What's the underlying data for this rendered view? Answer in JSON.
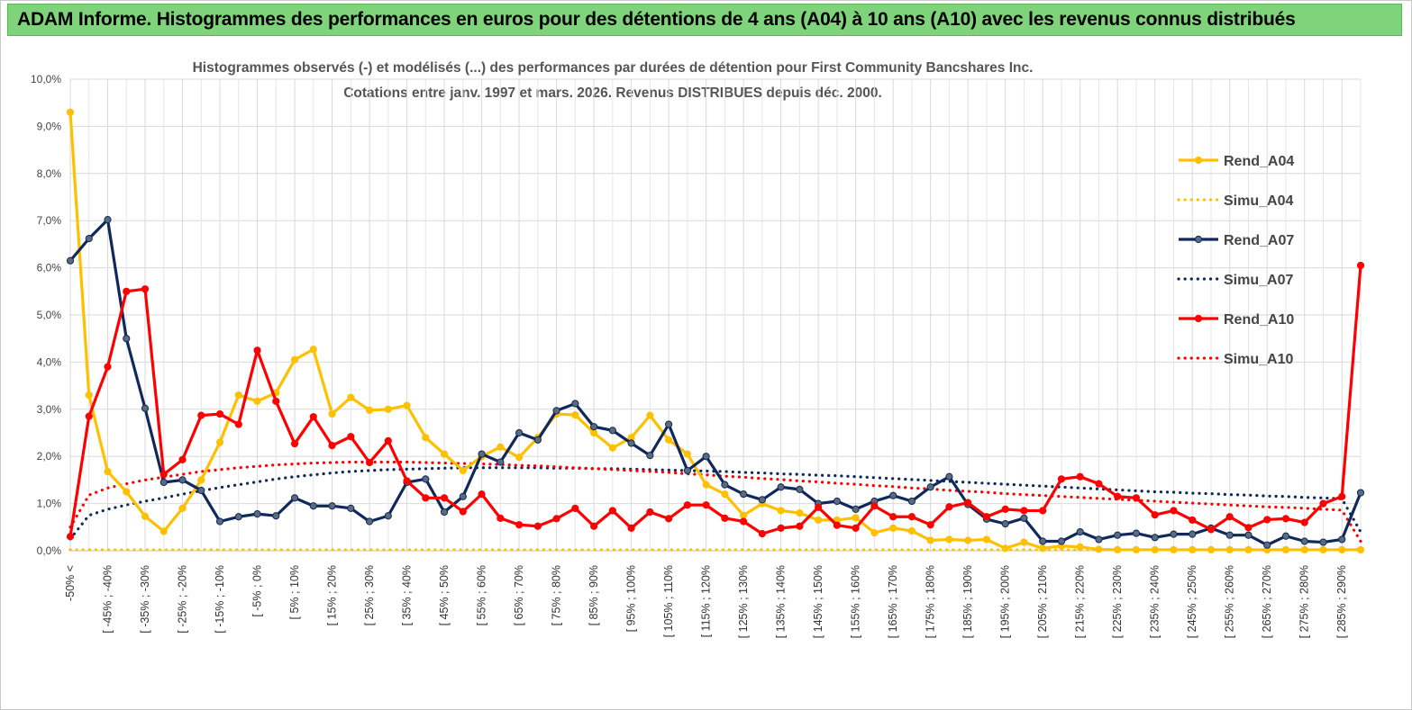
{
  "banner_title": "ADAM Informe. Histogrammes des performances en euros pour des détentions de 4 ans (A04) à 10 ans (A10) avec les revenus connus distribués",
  "chart_data": {
    "type": "line",
    "title_line1": "Histogrammes observés (-) et modélisés (...) des performances par durées de détention pour First Community Bancshares Inc.",
    "title_line2": "Cotations entre janv. 1997 et mars. 2026. Revenus DISTRIBUES depuis déc. 2000.",
    "ylim": [
      0,
      10
    ],
    "yticks": [
      "0,0%",
      "1,0%",
      "2,0%",
      "3,0%",
      "4,0%",
      "5,0%",
      "6,0%",
      "7,0%",
      "8,0%",
      "9,0%",
      "10,0%"
    ],
    "xtick_labels": [
      "-50% <",
      "[ -45% ; -40%",
      "[ -35% ; -30%",
      "[ -25% ; -20%",
      "[ -15% ; -10%",
      "[ -5% ; 0%",
      "[ 5% ; 10%",
      "[ 15% ; 20%",
      "[ 25% ; 30%",
      "[ 35% ; 40%",
      "[ 45% ; 50%",
      "[ 55% ; 60%",
      "[ 65% ; 70%",
      "[ 75% ; 80%",
      "[ 85% ; 90%",
      "[ 95% ; 100%",
      "[ 105% ; 110%",
      "[ 115% ; 120%",
      "[ 125% ; 130%",
      "[ 135% ; 140%",
      "[ 145% ; 150%",
      "[ 155% ; 160%",
      "[ 165% ; 170%",
      "[ 175% ; 180%",
      "[ 185% ; 190%",
      "[ 195% ; 200%",
      "[ 205% ; 210%",
      "[ 215% ; 220%",
      "[ 225% ; 230%",
      "[ 235% ; 240%",
      "[ 245% ; 250%",
      "[ 255% ; 260%",
      "[ 265% ; 270%",
      "[ 275% ; 280%",
      "[ 285% ; 290%"
    ],
    "series": [
      {
        "name": "Rend_A04",
        "color": "#ffc000",
        "style": "solid",
        "markers": true,
        "values": [
          9.3,
          3.3,
          1.68,
          1.25,
          0.73,
          0.41,
          0.9,
          1.5,
          2.3,
          3.3,
          3.17,
          3.35,
          4.05,
          4.27,
          2.9,
          3.25,
          2.98,
          3.0,
          3.08,
          2.4,
          2.05,
          1.7,
          2.0,
          2.2,
          1.98,
          2.4,
          2.9,
          2.88,
          2.5,
          2.18,
          2.4,
          2.87,
          2.35,
          2.05,
          1.4,
          1.2,
          0.75,
          1.0,
          0.85,
          0.8,
          0.65,
          0.65,
          0.7,
          0.38,
          0.48,
          0.42,
          0.22,
          0.24,
          0.22,
          0.24,
          0.05,
          0.18,
          0.05,
          0.1,
          0.08,
          0.03,
          0.02,
          0.02,
          0.02,
          0.02,
          0.02,
          0.02,
          0.02,
          0.02,
          0.02,
          0.02,
          0.02,
          0.02,
          0.02,
          0.02
        ]
      },
      {
        "name": "Simu_A04",
        "color": "#ffc000",
        "style": "dotted",
        "markers": false,
        "values": [
          0.02,
          0.02,
          0.02,
          0.02,
          0.02,
          0.02,
          0.02,
          0.02,
          0.02,
          0.02,
          0.02,
          0.02,
          0.02,
          0.02,
          0.02,
          0.02,
          0.02,
          0.02,
          0.02,
          0.02,
          0.02,
          0.02,
          0.02,
          0.02,
          0.02,
          0.02,
          0.02,
          0.02,
          0.02,
          0.02,
          0.02,
          0.02,
          0.02,
          0.02,
          0.02,
          0.02,
          0.02,
          0.02,
          0.02,
          0.02,
          0.02,
          0.02,
          0.02,
          0.02,
          0.02,
          0.02,
          0.02,
          0.02,
          0.02,
          0.02,
          0.02,
          0.02,
          0.02,
          0.02,
          0.02,
          0.02,
          0.02,
          0.02,
          0.02,
          0.02,
          0.02,
          0.02,
          0.02,
          0.02,
          0.02,
          0.02,
          0.02,
          0.02,
          0.02,
          0.02
        ]
      },
      {
        "name": "Rend_A07",
        "color": "#10285c",
        "style": "solid",
        "markers": true,
        "values": [
          6.15,
          6.62,
          7.02,
          4.5,
          3.02,
          1.45,
          1.5,
          1.28,
          0.62,
          0.72,
          0.78,
          0.74,
          1.12,
          0.95,
          0.95,
          0.9,
          0.62,
          0.74,
          1.45,
          1.52,
          0.82,
          1.15,
          2.05,
          1.88,
          2.5,
          2.35,
          2.97,
          3.12,
          2.63,
          2.55,
          2.28,
          2.02,
          2.68,
          1.7,
          2.0,
          1.4,
          1.2,
          1.08,
          1.35,
          1.3,
          1.0,
          1.05,
          0.88,
          1.05,
          1.17,
          1.05,
          1.35,
          1.57,
          0.98,
          0.67,
          0.57,
          0.69,
          0.2,
          0.2,
          0.4,
          0.24,
          0.33,
          0.37,
          0.28,
          0.35,
          0.35,
          0.48,
          0.33,
          0.33,
          0.12,
          0.31,
          0.2,
          0.18,
          0.24,
          1.23
        ]
      },
      {
        "name": "Simu_A07",
        "color": "#10285c",
        "style": "dotted",
        "markers": false,
        "values": [
          0.25,
          0.75,
          0.88,
          0.97,
          1.05,
          1.12,
          1.2,
          1.27,
          1.34,
          1.4,
          1.46,
          1.52,
          1.57,
          1.61,
          1.65,
          1.68,
          1.7,
          1.72,
          1.73,
          1.74,
          1.75,
          1.76,
          1.76,
          1.76,
          1.76,
          1.76,
          1.75,
          1.75,
          1.74,
          1.74,
          1.73,
          1.72,
          1.71,
          1.7,
          1.69,
          1.68,
          1.66,
          1.65,
          1.63,
          1.62,
          1.6,
          1.59,
          1.57,
          1.55,
          1.53,
          1.51,
          1.49,
          1.47,
          1.45,
          1.43,
          1.41,
          1.39,
          1.37,
          1.35,
          1.33,
          1.31,
          1.29,
          1.27,
          1.25,
          1.24,
          1.22,
          1.21,
          1.19,
          1.18,
          1.16,
          1.15,
          1.13,
          1.12,
          1.1,
          0.4
        ]
      },
      {
        "name": "Rend_A10",
        "color": "#ff0000",
        "style": "solid",
        "markers": true,
        "values": [
          0.3,
          2.85,
          3.9,
          5.5,
          5.55,
          1.62,
          1.93,
          2.87,
          2.9,
          2.68,
          4.25,
          3.17,
          2.27,
          2.84,
          2.23,
          2.42,
          1.87,
          2.33,
          1.48,
          1.12,
          1.12,
          0.83,
          1.2,
          0.69,
          0.55,
          0.52,
          0.68,
          0.9,
          0.52,
          0.85,
          0.48,
          0.82,
          0.68,
          0.97,
          0.97,
          0.69,
          0.62,
          0.36,
          0.48,
          0.52,
          0.92,
          0.54,
          0.48,
          0.95,
          0.72,
          0.72,
          0.55,
          0.93,
          1.02,
          0.72,
          0.88,
          0.85,
          0.85,
          1.52,
          1.57,
          1.42,
          1.15,
          1.12,
          0.76,
          0.85,
          0.65,
          0.45,
          0.72,
          0.49,
          0.66,
          0.68,
          0.6,
          1.0,
          1.15,
          6.05
        ]
      },
      {
        "name": "Simu_A10",
        "color": "#ff0000",
        "style": "dotted",
        "markers": false,
        "values": [
          0.5,
          1.18,
          1.33,
          1.42,
          1.5,
          1.56,
          1.62,
          1.68,
          1.72,
          1.76,
          1.79,
          1.82,
          1.84,
          1.86,
          1.87,
          1.88,
          1.88,
          1.88,
          1.88,
          1.87,
          1.86,
          1.85,
          1.84,
          1.83,
          1.81,
          1.8,
          1.78,
          1.76,
          1.74,
          1.72,
          1.7,
          1.68,
          1.66,
          1.63,
          1.61,
          1.58,
          1.56,
          1.53,
          1.51,
          1.48,
          1.46,
          1.43,
          1.41,
          1.38,
          1.36,
          1.33,
          1.31,
          1.28,
          1.26,
          1.24,
          1.21,
          1.19,
          1.17,
          1.15,
          1.13,
          1.11,
          1.09,
          1.07,
          1.05,
          1.03,
          1.01,
          0.99,
          0.97,
          0.95,
          0.93,
          0.92,
          0.9,
          0.88,
          0.86,
          0.2
        ]
      }
    ],
    "legend_position": "right"
  }
}
